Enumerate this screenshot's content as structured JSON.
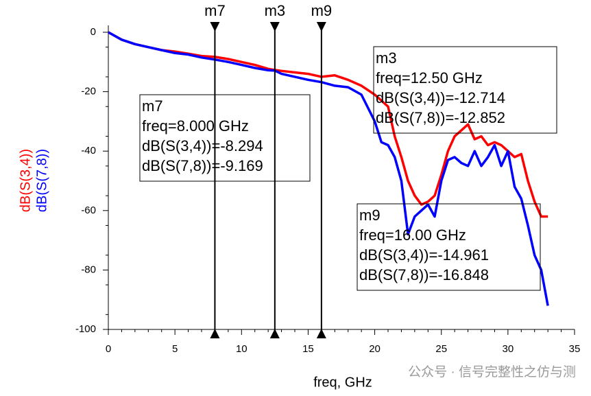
{
  "chart_data": {
    "type": "line",
    "xlabel": "freq, GHz",
    "x": [
      0,
      1,
      2,
      3,
      4,
      5,
      6,
      7,
      8,
      9,
      10,
      11,
      12,
      12.5,
      13,
      14,
      15,
      16,
      17,
      18,
      19,
      20,
      20.5,
      21,
      21.5,
      22,
      22.5,
      23,
      23.5,
      24,
      24.5,
      25,
      25.5,
      26,
      26.5,
      27,
      27.5,
      28,
      28.5,
      29,
      29.5,
      30,
      30.5,
      31,
      31.5,
      32,
      32.5,
      33
    ],
    "series": [
      {
        "name": "dB(S(3,4))",
        "color": "#ff0000",
        "values": [
          0,
          -2.5,
          -4,
          -5,
          -6,
          -6.5,
          -7.2,
          -8,
          -8.3,
          -9,
          -10,
          -11,
          -12.3,
          -12.7,
          -13,
          -13.5,
          -14,
          -15,
          -14.5,
          -16,
          -18,
          -21,
          -23,
          -25,
          -35,
          -42,
          -50,
          -55,
          -58,
          -57,
          -55,
          -48,
          -40,
          -35,
          -33,
          -31,
          -36,
          -35,
          -38,
          -37,
          -38,
          -40,
          -42,
          -41,
          -50,
          -57,
          -62,
          -62
        ]
      },
      {
        "name": "dB(S(7,8))",
        "color": "#0000ff",
        "values": [
          0,
          -2.5,
          -4,
          -5,
          -6,
          -7,
          -7.5,
          -8.5,
          -9.2,
          -10,
          -11,
          -12,
          -12.8,
          -12.9,
          -14,
          -15,
          -16,
          -16.8,
          -18,
          -18.5,
          -21,
          -30,
          -37,
          -38,
          -42,
          -50,
          -68,
          -62,
          -60,
          -58,
          -62,
          -50,
          -43,
          -42,
          -44,
          -45,
          -40,
          -45,
          -42,
          -38,
          -45,
          -40,
          -52,
          -56,
          -65,
          -75,
          -80,
          -92
        ]
      }
    ],
    "xlim": [
      0,
      35
    ],
    "xticks": [
      0,
      5,
      10,
      15,
      20,
      25,
      30,
      35
    ],
    "ylim": [
      -100,
      0
    ],
    "yticks": [
      0,
      -20,
      -40,
      -60,
      -80,
      -100
    ],
    "markers": [
      {
        "name": "m7",
        "x": 8,
        "lines": [
          "freq=8.000 GHz",
          "dB(S(3,4))=-8.294",
          "dB(S(7,8))=-9.169"
        ]
      },
      {
        "name": "m3",
        "x": 12.5,
        "lines": [
          "freq=12.50 GHz",
          "dB(S(3,4))=-12.714",
          "dB(S(7,8))=-12.852"
        ]
      },
      {
        "name": "m9",
        "x": 16,
        "lines": [
          "freq=16.00 GHz",
          "dB(S(3,4))=-14.961",
          "dB(S(7,8))=-16.848"
        ]
      }
    ],
    "watermark": "公众号 · 信号完整性之仿与测"
  }
}
